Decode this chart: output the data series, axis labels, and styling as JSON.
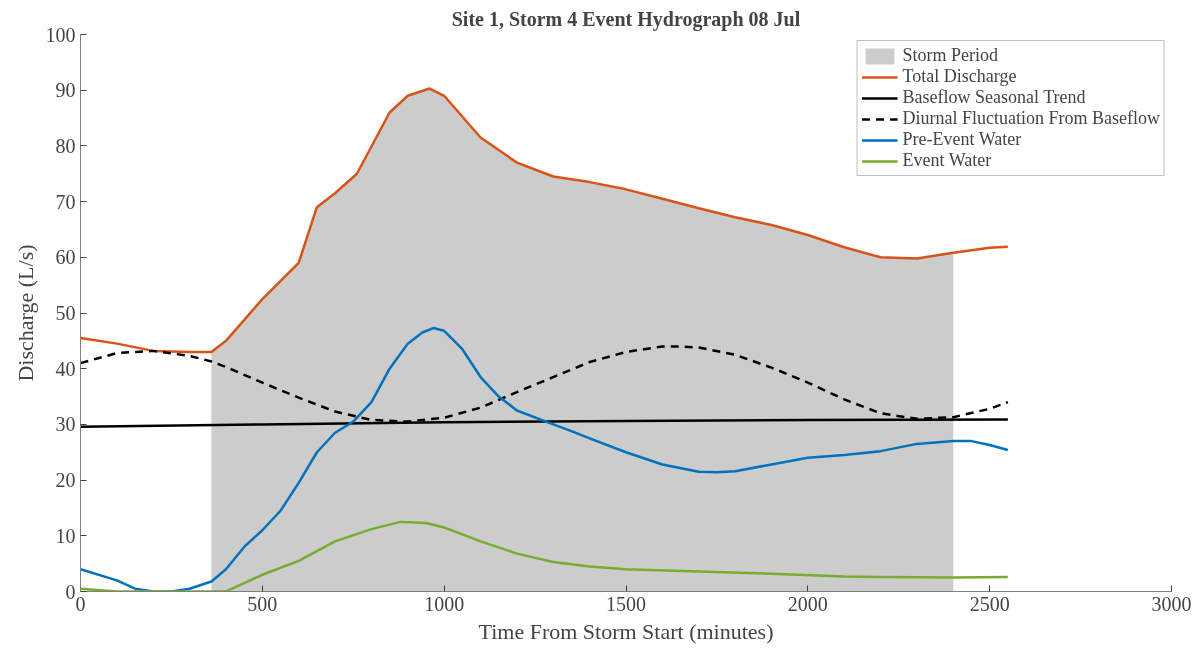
{
  "chart_data": {
    "type": "line",
    "title": "Site 1, Storm 4 Event Hydrograph 08 Jul",
    "xlabel": "Time From Storm Start (minutes)",
    "ylabel": "Discharge (L/s)",
    "xlim": [
      0,
      3000
    ],
    "xticks": [
      0,
      500,
      1000,
      1500,
      2000,
      2500,
      3000
    ],
    "ylim": [
      0,
      100
    ],
    "yticks": [
      0,
      10,
      20,
      30,
      40,
      50,
      60,
      70,
      80,
      90,
      100
    ],
    "grid": false,
    "legend": "top right",
    "marker": "none",
    "series": [
      {
        "name": "Storm Period",
        "type": "area",
        "color": "#cccccc",
        "x": [
          360,
          400,
          500,
          600,
          650,
          700,
          760,
          850,
          900,
          960,
          1000,
          1100,
          1200,
          1300,
          1400,
          1500,
          1600,
          1700,
          1800,
          1900,
          2000,
          2100,
          2200,
          2300,
          2400
        ],
        "values": [
          43,
          45,
          52.5,
          59,
          69,
          71.5,
          75,
          86,
          89,
          90.3,
          89,
          81.5,
          77,
          74.5,
          73.5,
          72.2,
          70.5,
          68.8,
          67.2,
          65.8,
          64,
          61.8,
          60,
          59.8,
          60.8
        ]
      },
      {
        "name": "Total Discharge",
        "color": "#d95319",
        "line_style": "solid",
        "x": [
          0,
          100,
          200,
          300,
          360,
          400,
          500,
          600,
          650,
          700,
          760,
          850,
          900,
          960,
          1000,
          1100,
          1200,
          1300,
          1400,
          1500,
          1600,
          1700,
          1800,
          1900,
          2000,
          2100,
          2200,
          2300,
          2400,
          2500,
          2550
        ],
        "values": [
          45.5,
          44.5,
          43.2,
          43,
          43,
          45,
          52.5,
          59,
          69,
          71.5,
          75,
          86,
          89,
          90.3,
          89,
          81.5,
          77,
          74.5,
          73.5,
          72.2,
          70.5,
          68.8,
          67.2,
          65.8,
          64,
          61.8,
          60,
          59.8,
          60.8,
          61.7,
          61.9
        ]
      },
      {
        "name": "Baseflow Seasonal Trend",
        "color": "#000000",
        "line_style": "solid",
        "x": [
          0,
          500,
          1000,
          1500,
          2000,
          2550
        ],
        "values": [
          29.6,
          30,
          30.4,
          30.6,
          30.8,
          30.9
        ]
      },
      {
        "name": "Diurnal Fluctuation From Baseflow",
        "color": "#000000",
        "line_style": "dashed",
        "x": [
          0,
          100,
          200,
          300,
          360,
          400,
          500,
          600,
          700,
          800,
          900,
          1000,
          1100,
          1200,
          1300,
          1400,
          1500,
          1600,
          1650,
          1700,
          1800,
          1900,
          2000,
          2100,
          2200,
          2300,
          2400,
          2500,
          2550
        ],
        "values": [
          41,
          42.8,
          43.2,
          42.3,
          41.3,
          40.3,
          37.5,
          34.8,
          32.3,
          30.8,
          30.5,
          31.2,
          33,
          35.8,
          38.5,
          41.2,
          43,
          44,
          44,
          43.8,
          42.5,
          40.2,
          37.5,
          34.5,
          32,
          31,
          31.3,
          32.8,
          34
        ]
      },
      {
        "name": "Pre-Event Water",
        "color": "#0072bd",
        "line_style": "solid",
        "x": [
          0,
          100,
          150,
          200,
          250,
          300,
          360,
          400,
          450,
          500,
          550,
          600,
          650,
          700,
          750,
          800,
          850,
          900,
          940,
          970,
          1000,
          1050,
          1100,
          1150,
          1200,
          1300,
          1350,
          1400,
          1500,
          1600,
          1700,
          1750,
          1800,
          1900,
          2000,
          2100,
          2200,
          2300,
          2400,
          2450,
          2500,
          2550
        ],
        "values": [
          4,
          2,
          0.5,
          0,
          0,
          0.5,
          1.8,
          4,
          8,
          11,
          14.5,
          19.5,
          25,
          28.5,
          30.5,
          34,
          40,
          44.5,
          46.5,
          47.3,
          46.8,
          43.5,
          38.5,
          35,
          32.5,
          30,
          28.8,
          27.5,
          25,
          22.8,
          21.5,
          21.4,
          21.6,
          22.8,
          24,
          24.5,
          25.2,
          26.5,
          27,
          27,
          26.3,
          25.4
        ]
      },
      {
        "name": "Event Water",
        "color": "#77ac30",
        "line_style": "solid",
        "x": [
          0,
          100,
          200,
          300,
          400,
          450,
          500,
          600,
          700,
          800,
          880,
          950,
          1000,
          1100,
          1200,
          1300,
          1400,
          1500,
          1700,
          1900,
          2100,
          2200,
          2400,
          2550
        ],
        "values": [
          0.5,
          0,
          0,
          0,
          0,
          1.5,
          3,
          5.5,
          9,
          11.2,
          12.5,
          12.3,
          11.5,
          9,
          6.8,
          5.3,
          4.5,
          4,
          3.6,
          3.2,
          2.7,
          2.6,
          2.5,
          2.6
        ]
      }
    ]
  }
}
